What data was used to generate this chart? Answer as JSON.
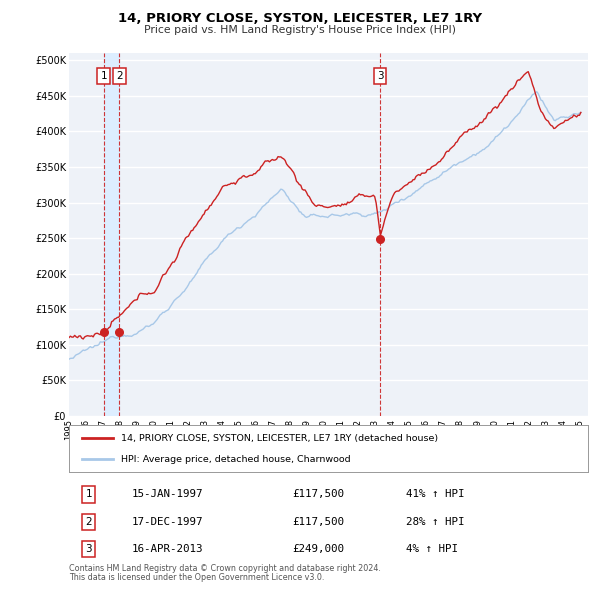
{
  "title": "14, PRIORY CLOSE, SYSTON, LEICESTER, LE7 1RY",
  "subtitle": "Price paid vs. HM Land Registry's House Price Index (HPI)",
  "legend_line1": "14, PRIORY CLOSE, SYSTON, LEICESTER, LE7 1RY (detached house)",
  "legend_line2": "HPI: Average price, detached house, Charnwood",
  "footnote1": "Contains HM Land Registry data © Crown copyright and database right 2024.",
  "footnote2": "This data is licensed under the Open Government Licence v3.0.",
  "hpi_color": "#a8c8e8",
  "price_color": "#cc2222",
  "sale_dot_color": "#cc2222",
  "vline_color": "#cc2222",
  "shaded_color": "#ddeeff",
  "background_color": "#eef2f8",
  "grid_color": "#ffffff",
  "yticks": [
    0,
    50000,
    100000,
    150000,
    200000,
    250000,
    300000,
    350000,
    400000,
    450000,
    500000
  ],
  "ytick_labels": [
    "£0",
    "£50K",
    "£100K",
    "£150K",
    "£200K",
    "£250K",
    "£300K",
    "£350K",
    "£400K",
    "£450K",
    "£500K"
  ],
  "xlim_start": 1995.0,
  "xlim_end": 2025.5,
  "ylim_max": 510000,
  "ylim_min": 0,
  "sales": [
    {
      "date": 1997.04,
      "price": 117500,
      "label": "1"
    },
    {
      "date": 1997.96,
      "price": 117500,
      "label": "2"
    },
    {
      "date": 2013.29,
      "price": 249000,
      "label": "3"
    }
  ],
  "vlines": [
    1997.04,
    1997.96,
    2013.29
  ],
  "table_entries": [
    {
      "num": "1",
      "date": "15-JAN-1997",
      "price": "£117,500",
      "hpi": "41% ↑ HPI"
    },
    {
      "num": "2",
      "date": "17-DEC-1997",
      "price": "£117,500",
      "hpi": "28% ↑ HPI"
    },
    {
      "num": "3",
      "date": "16-APR-2013",
      "price": "£249,000",
      "hpi": "4% ↑ HPI"
    }
  ]
}
